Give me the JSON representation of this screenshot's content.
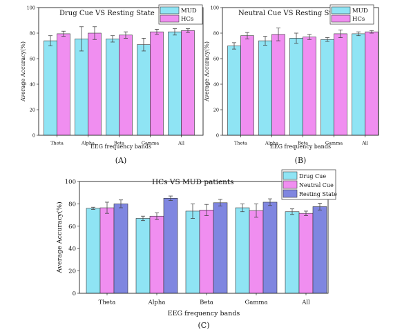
{
  "chart_data": [
    {
      "type": "bar",
      "title": "Drug Cue VS Resting State",
      "xlabel": "EEG frequency bands",
      "ylabel": "Average Accuracy(%)",
      "ylim": [
        0,
        100
      ],
      "yticks": [
        0,
        20,
        40,
        60,
        80,
        100
      ],
      "grid": false,
      "legend_position": "top-right",
      "caption": "(A)",
      "categories": [
        "Theta",
        "Alpha",
        "Beta",
        "Gamma",
        "All"
      ],
      "series": [
        {
          "name": "MUD",
          "color": "#8fe4f4",
          "values": [
            74.0,
            75.5,
            75.5,
            71.0,
            81.0
          ],
          "errors": [
            4.0,
            9.5,
            2.5,
            5.0,
            2.5
          ]
        },
        {
          "name": "HCs",
          "color": "#f08ef0",
          "values": [
            79.5,
            80.0,
            78.5,
            81.0,
            82.0
          ],
          "errors": [
            2.0,
            5.0,
            2.5,
            2.0,
            1.5
          ]
        }
      ]
    },
    {
      "type": "bar",
      "title": "Neutral Cue VS Resting State",
      "xlabel": "EEG frequency bands",
      "ylabel": "Average Accuracy(%)",
      "ylim": [
        0,
        100
      ],
      "yticks": [
        0,
        20,
        40,
        60,
        80,
        100
      ],
      "grid": false,
      "legend_position": "top-right",
      "caption": "(B)",
      "categories": [
        "Theta",
        "Alpha",
        "Beta",
        "Gamma",
        "All"
      ],
      "series": [
        {
          "name": "MUD",
          "color": "#8fe4f4",
          "values": [
            70.0,
            74.0,
            76.0,
            75.0,
            79.5
          ],
          "errors": [
            2.5,
            3.5,
            4.0,
            1.5,
            1.5
          ]
        },
        {
          "name": "HCs",
          "color": "#f08ef0",
          "values": [
            78.0,
            79.0,
            77.0,
            79.5,
            81.0
          ],
          "errors": [
            2.5,
            5.0,
            2.0,
            3.0,
            1.0
          ]
        }
      ]
    },
    {
      "type": "bar",
      "title": "HCs VS MUD patients",
      "xlabel": "EEG frequency bands",
      "ylabel": "Average Accuracy(%)",
      "ylim": [
        0,
        100
      ],
      "yticks": [
        0,
        20,
        40,
        60,
        80,
        100
      ],
      "grid": false,
      "legend_position": "top-right",
      "caption": "(C)",
      "categories": [
        "Theta",
        "Alpha",
        "Beta",
        "Gamma",
        "All"
      ],
      "series": [
        {
          "name": "Drug Cue",
          "color": "#8fe4f4",
          "values": [
            76.0,
            67.0,
            73.5,
            76.5,
            73.0
          ],
          "errors": [
            1.0,
            2.0,
            6.5,
            3.5,
            2.5
          ]
        },
        {
          "name": "Neutral Cue",
          "color": "#f08ef0",
          "values": [
            76.5,
            69.0,
            74.5,
            74.0,
            71.5
          ],
          "errors": [
            5.0,
            3.0,
            5.0,
            6.0,
            2.0
          ]
        },
        {
          "name": "Resting State",
          "color": "#7f86e0",
          "values": [
            80.0,
            85.0,
            81.0,
            81.5,
            77.5
          ],
          "errors": [
            3.5,
            2.0,
            3.0,
            3.0,
            3.0
          ]
        }
      ]
    }
  ]
}
